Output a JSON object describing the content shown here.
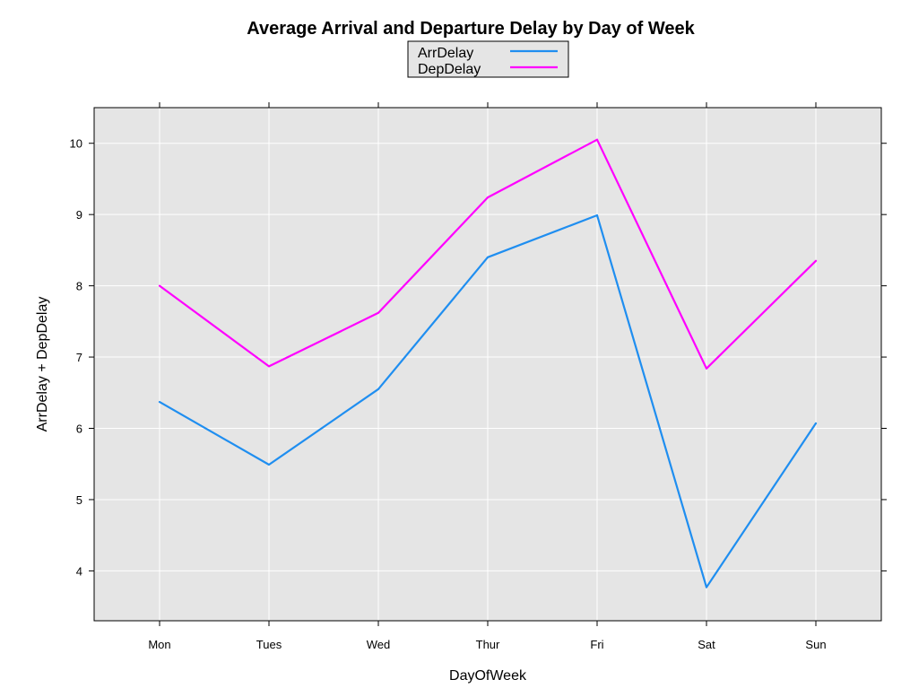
{
  "chart_data": {
    "type": "line",
    "title": "Average Arrival and Departure Delay by Day of Week",
    "xlabel": "DayOfWeek",
    "ylabel": "ArrDelay + DepDelay",
    "categories": [
      "Mon",
      "Tues",
      "Wed",
      "Thur",
      "Fri",
      "Sat",
      "Sun"
    ],
    "yticks": [
      4,
      5,
      6,
      7,
      8,
      9,
      10
    ],
    "ylim": [
      3.3,
      10.5
    ],
    "grid": true,
    "legend_position": "top",
    "series": [
      {
        "name": "ArrDelay",
        "color": "#1f8ef0",
        "values": [
          6.37,
          5.49,
          6.55,
          8.4,
          8.99,
          3.77,
          6.07
        ]
      },
      {
        "name": "DepDelay",
        "color": "#ff00ff",
        "values": [
          8.0,
          6.87,
          7.62,
          9.24,
          10.05,
          6.84,
          8.35
        ]
      }
    ],
    "colors": {
      "panel_background": "#e5e5e5",
      "grid": "#ffffff",
      "frame": "#000000"
    }
  }
}
